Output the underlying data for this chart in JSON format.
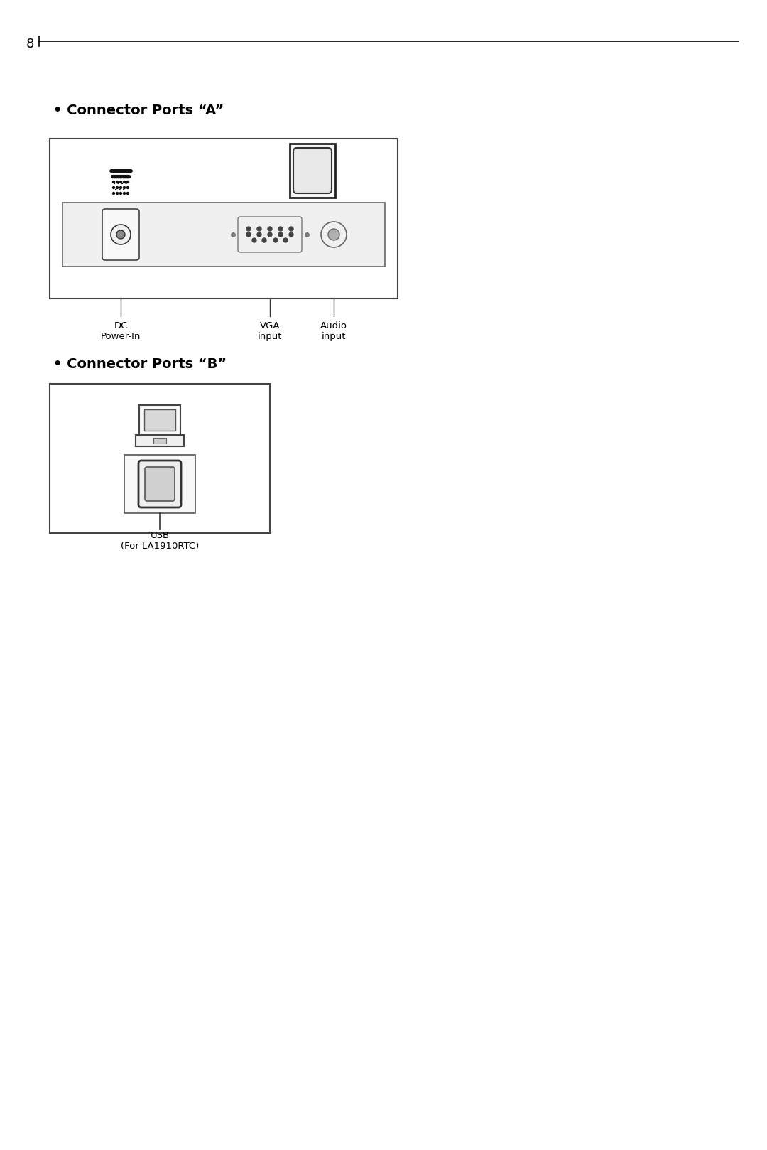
{
  "page_number": "8",
  "bg": "#ffffff",
  "fg": "#000000",
  "title_a": "• Connector Ports “A”",
  "title_b": "• Connector Ports “B”",
  "title_fontsize": 14,
  "label_dc": "DC\nPower-In",
  "label_vga": "VGA\ninput",
  "label_audio": "Audio\ninput",
  "label_usb": "USB\n(For LA1910RTC)"
}
